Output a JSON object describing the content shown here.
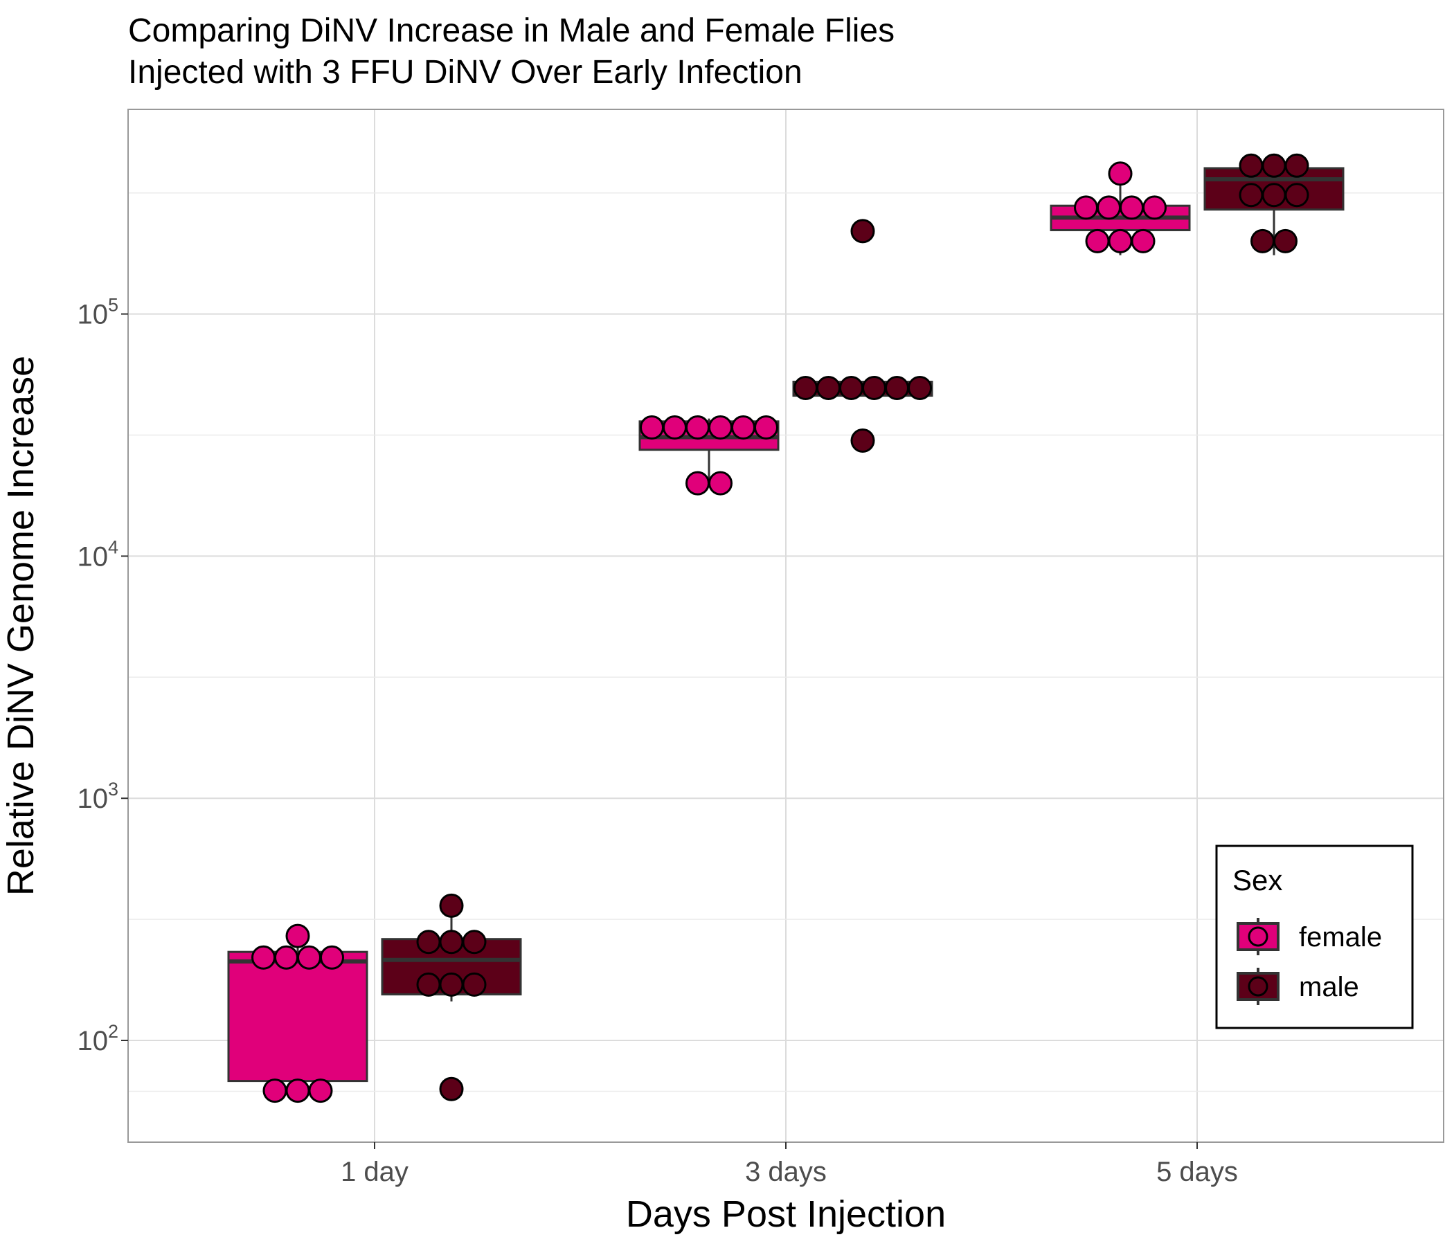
{
  "chart_data": {
    "type": "box",
    "title": [
      "Comparing DiNV Increase in Male and Female Flies",
      "Injected with 3 FFU DiNV Over Early Infection"
    ],
    "xlabel": "Days Post Injection",
    "ylabel": "Relative DiNV Genome Increase",
    "categories": [
      "1 day",
      "3 days",
      "5 days"
    ],
    "yscale": "log10",
    "ylim": [
      38,
      700000
    ],
    "yticks": [
      {
        "value": 100,
        "base": "10",
        "exp": "2"
      },
      {
        "value": 1000,
        "base": "10",
        "exp": "3"
      },
      {
        "value": 10000,
        "base": "10",
        "exp": "4"
      },
      {
        "value": 100000,
        "base": "10",
        "exp": "5"
      }
    ],
    "grid": true,
    "legend": {
      "title": "Sex",
      "position": "bottom-right"
    },
    "series": [
      {
        "name": "female",
        "color": "#e0007a",
        "boxes": [
          {
            "q1": 68,
            "median": 212,
            "q3": 232,
            "whisker_low": 62,
            "whisker_high": 270
          },
          {
            "q1": 27500,
            "median": 31000,
            "q3": 36000,
            "whisker_low": 20000,
            "whisker_high": 37000
          },
          {
            "q1": 222000,
            "median": 250000,
            "q3": 280000,
            "whisker_low": 175000,
            "whisker_high": 380000
          }
        ],
        "points": [
          [
            62,
            62,
            62,
            220,
            220,
            220,
            220,
            270
          ],
          [
            20000,
            20000,
            34000,
            34000,
            34000,
            34000,
            34000,
            34000
          ],
          [
            200000,
            200000,
            200000,
            275000,
            275000,
            275000,
            275000,
            380000
          ]
        ]
      },
      {
        "name": "male",
        "color": "#5c0018",
        "boxes": [
          {
            "q1": 155,
            "median": 215,
            "q3": 262,
            "whisker_low": 145,
            "whisker_high": 360
          },
          {
            "q1": 46000,
            "median": 49500,
            "q3": 52500,
            "whisker_low": 46000,
            "whisker_high": 52500
          },
          {
            "q1": 270000,
            "median": 360000,
            "q3": 400000,
            "whisker_low": 175000,
            "whisker_high": 400000
          }
        ],
        "points": [
          [
            63,
            170,
            170,
            170,
            255,
            255,
            255,
            360
          ],
          [
            30000,
            49500,
            49500,
            49500,
            49500,
            49500,
            49500,
            220000
          ],
          [
            200000,
            200000,
            310000,
            310000,
            310000,
            410000,
            410000,
            410000
          ]
        ]
      }
    ]
  }
}
